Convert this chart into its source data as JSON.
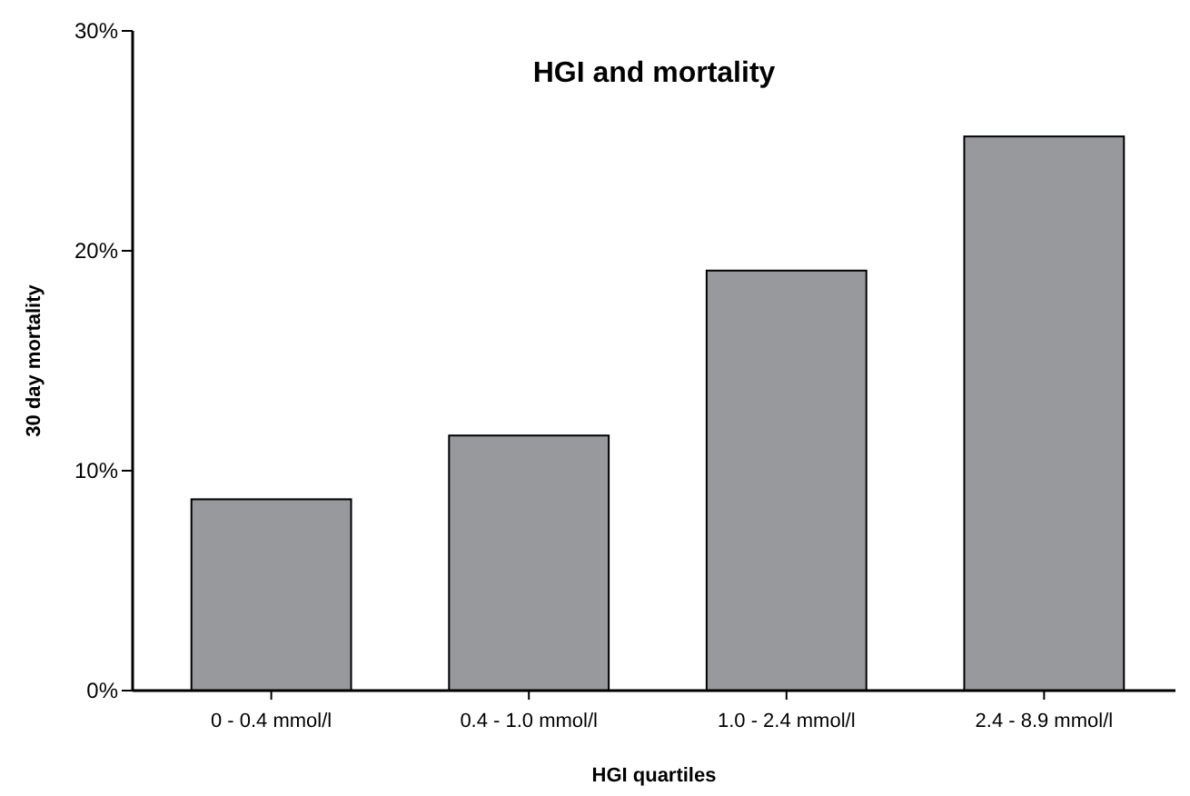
{
  "chart_data": {
    "type": "bar",
    "title": "HGI and mortality",
    "xlabel": "HGI quartiles",
    "ylabel": "30 day mortality",
    "categories": [
      "0 - 0.4 mmol/l",
      "0.4 - 1.0 mmol/l",
      "1.0 - 2.4 mmol/l",
      "2.4 - 8.9 mmol/l"
    ],
    "values": [
      8.7,
      11.6,
      19.1,
      25.2
    ],
    "color": "#98999c",
    "ylim": [
      0,
      30
    ],
    "yticks": [
      {
        "value": 0,
        "label": "0%"
      },
      {
        "value": 10,
        "label": "10%"
      },
      {
        "value": 20,
        "label": "20%"
      },
      {
        "value": 30,
        "label": "30%"
      }
    ],
    "grid": false
  }
}
